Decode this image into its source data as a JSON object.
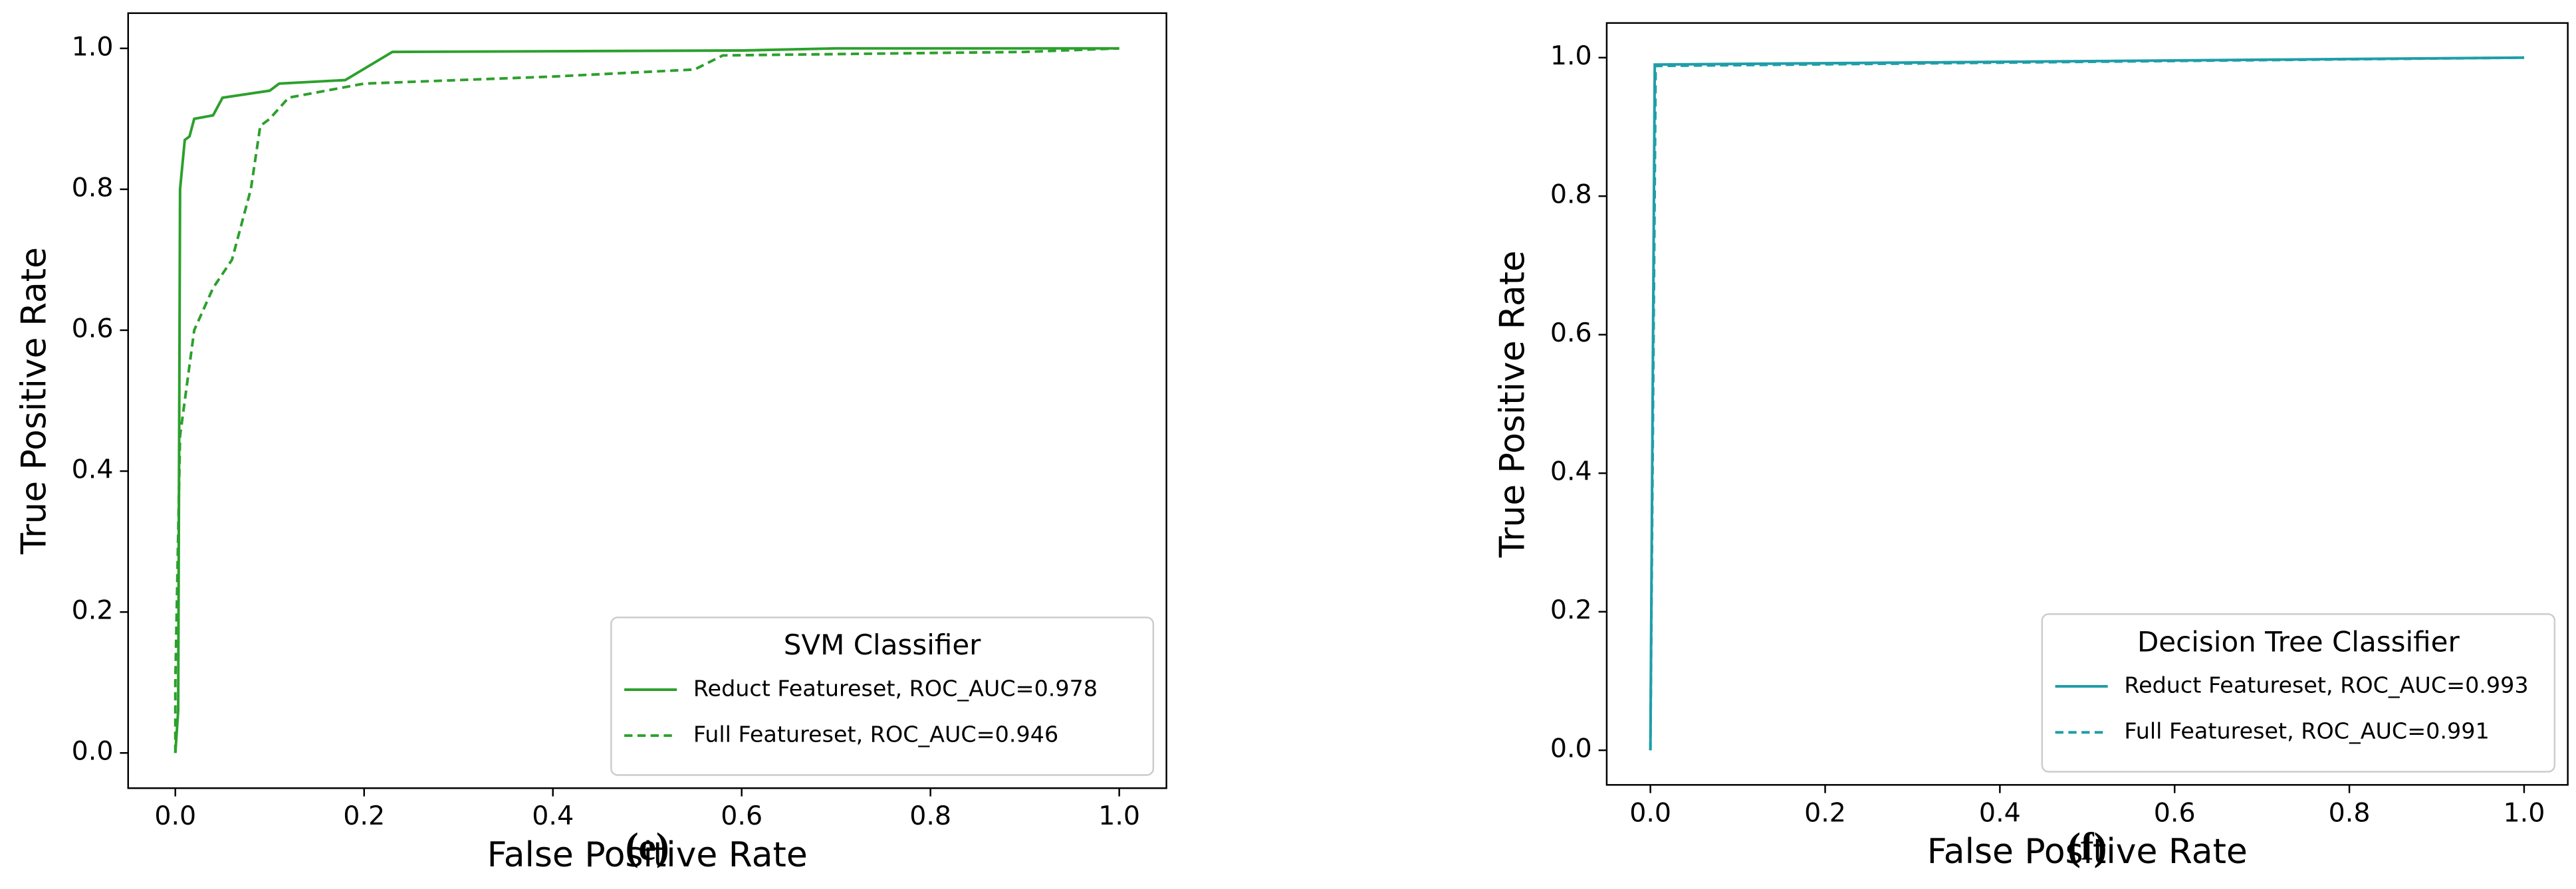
{
  "chart_data": [
    {
      "type": "line",
      "caption": "(e)",
      "legend_title": "SVM Classifier",
      "legend_loc": "lower right",
      "x_label": "False Positive Rate",
      "y_label": "True Positive Rate",
      "xlim": [
        -0.05,
        1.05
      ],
      "ylim": [
        -0.05,
        1.05
      ],
      "xticks": [
        {
          "value": 0,
          "label": "0.0"
        },
        0.2,
        0.4,
        0.6,
        0.8,
        {
          "value": 1,
          "label": "1.0"
        }
      ],
      "yticks": [
        {
          "value": 0,
          "label": "0.0"
        },
        0.2,
        0.4,
        0.6,
        0.8,
        {
          "value": 1,
          "label": "1.0"
        }
      ],
      "series": [
        {
          "name": "Reduct Featureset, ROC_AUC=0.978",
          "color": "#2ca02c",
          "dashed": false,
          "x": [
            0,
            0.003,
            0.005,
            0.01,
            0.015,
            0.02,
            0.04,
            0.05,
            0.1,
            0.11,
            0.18,
            0.23,
            0.6,
            0.7,
            1
          ],
          "values": [
            0,
            0.06,
            0.8,
            0.87,
            0.875,
            0.9,
            0.905,
            0.93,
            0.94,
            0.95,
            0.955,
            0.995,
            0.997,
            1,
            1
          ]
        },
        {
          "name": "Full Featureset, ROC_AUC=0.946",
          "color": "#2ca02c",
          "dashed": true,
          "x": [
            0,
            0,
            0.005,
            0.02,
            0.04,
            0.06,
            0.08,
            0.09,
            0.1,
            0.12,
            0.2,
            0.3,
            0.4,
            0.55,
            0.58,
            0.9,
            1
          ],
          "values": [
            0,
            0.1,
            0.45,
            0.6,
            0.66,
            0.7,
            0.8,
            0.89,
            0.9,
            0.93,
            0.95,
            0.955,
            0.96,
            0.97,
            0.99,
            0.995,
            1
          ]
        }
      ]
    },
    {
      "type": "line",
      "caption": "(f)",
      "legend_title": "Decision Tree Classifier",
      "legend_loc": "lower right",
      "x_label": "False Positive Rate",
      "y_label": "True Positive Rate",
      "xlim": [
        -0.05,
        1.05
      ],
      "ylim": [
        -0.05,
        1.05
      ],
      "xticks": [
        {
          "value": 0,
          "label": "0.0"
        },
        0.2,
        0.4,
        0.6,
        0.8,
        {
          "value": 1,
          "label": "1.0"
        }
      ],
      "yticks": [
        {
          "value": 0,
          "label": "0.0"
        },
        0.2,
        0.4,
        0.6,
        0.8,
        {
          "value": 1,
          "label": "1.0"
        }
      ],
      "series": [
        {
          "name": "Reduct Featureset, ROC_AUC=0.993",
          "color": "#1f9ea8",
          "dashed": false,
          "x": [
            0,
            0.005,
            1
          ],
          "values": [
            0,
            0.99,
            1
          ]
        },
        {
          "name": "Full Featureset, ROC_AUC=0.991",
          "color": "#1f9ea8",
          "dashed": true,
          "x": [
            0,
            0.006,
            1
          ],
          "values": [
            0,
            0.988,
            1
          ]
        }
      ]
    }
  ]
}
